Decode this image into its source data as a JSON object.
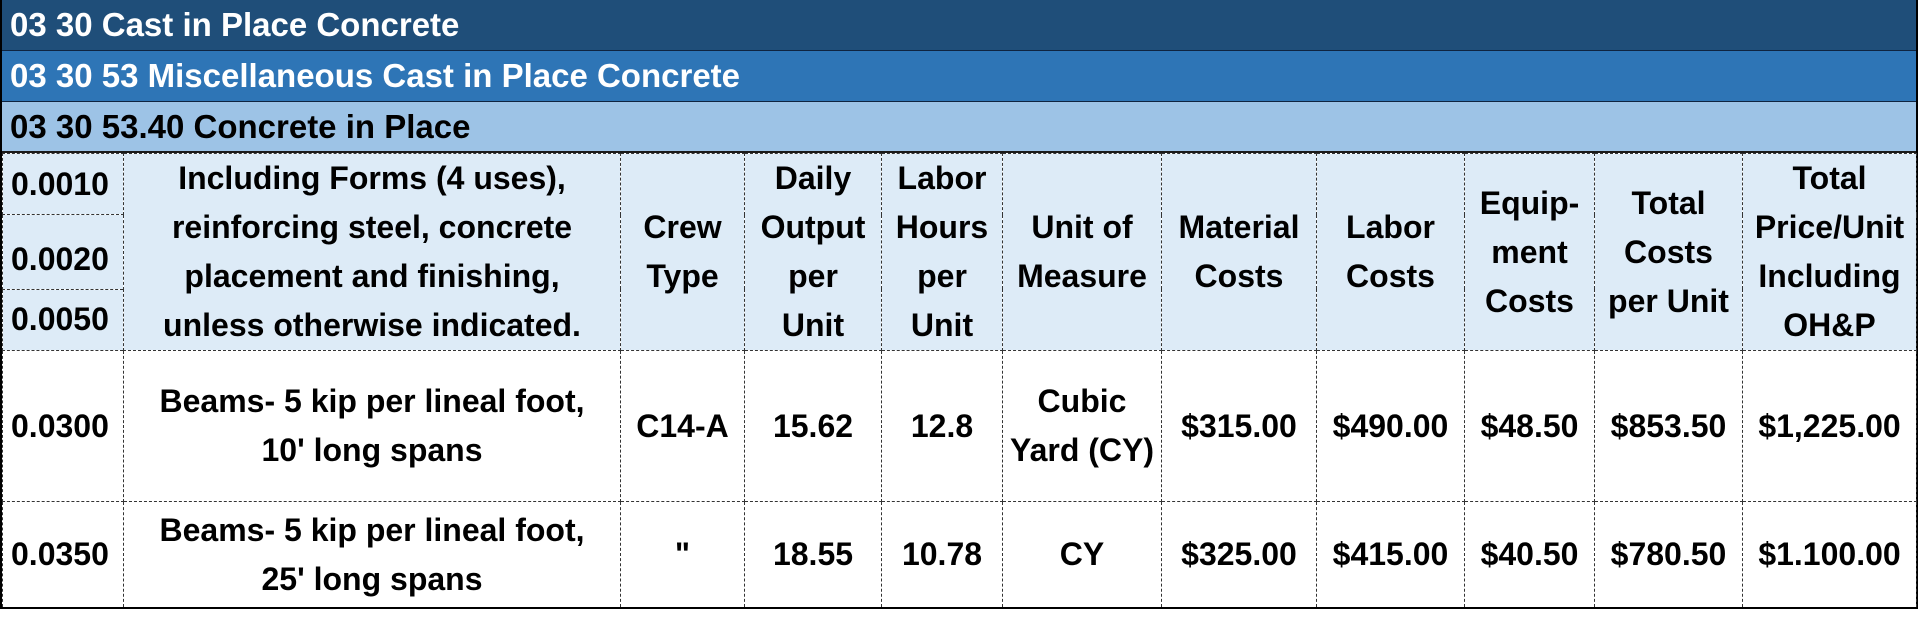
{
  "sections": {
    "division": "03 30 Cast in Place Concrete",
    "subdivision": "03 30 53 Miscellaneous Cast in Place Concrete",
    "section": "03 30 53.40 Concrete in Place"
  },
  "header": {
    "codes": [
      "0.0010",
      "0.0020",
      "0.0050"
    ],
    "description_lines": [
      "Including Forms (4 uses),",
      "reinforcing steel, concrete",
      "placement and finishing,",
      "unless otherwise indicated."
    ],
    "crew_type": [
      "Crew",
      "Type"
    ],
    "daily_output": [
      "Daily",
      "Output",
      "per",
      "Unit"
    ],
    "labor_hours": [
      "Labor",
      "Hours",
      "per",
      "Unit"
    ],
    "unit_of_measure": [
      "Unit of",
      "Measure"
    ],
    "material_costs": [
      "Material",
      "Costs"
    ],
    "labor_costs": [
      "Labor",
      "Costs"
    ],
    "equipment_costs": [
      "Equip-",
      "ment",
      "Costs"
    ],
    "total_costs": [
      "Total",
      "Costs",
      "per Unit"
    ],
    "total_price": [
      "Total",
      "Price/Unit",
      "Including",
      "OH&P"
    ]
  },
  "rows": [
    {
      "code": "0.0300",
      "description": [
        "Beams- 5 kip per lineal foot,",
        "10' long spans"
      ],
      "crew": "C14-A",
      "daily_output": "15.62",
      "labor_hours": "12.8",
      "unit": [
        "Cubic",
        "Yard (CY)"
      ],
      "material": "$315.00",
      "labor": "$490.00",
      "equipment": "$48.50",
      "total": "$853.50",
      "total_op": "$1,225.00"
    },
    {
      "code": "0.0350",
      "description": [
        "Beams- 5 kip per lineal foot,",
        "25' long spans"
      ],
      "crew": "\"",
      "daily_output": "18.55",
      "labor_hours": "10.78",
      "unit": [
        "CY"
      ],
      "material": "$325.00",
      "labor": "$415.00",
      "equipment": "$40.50",
      "total": "$780.50",
      "total_op": "$1.100.00"
    }
  ]
}
